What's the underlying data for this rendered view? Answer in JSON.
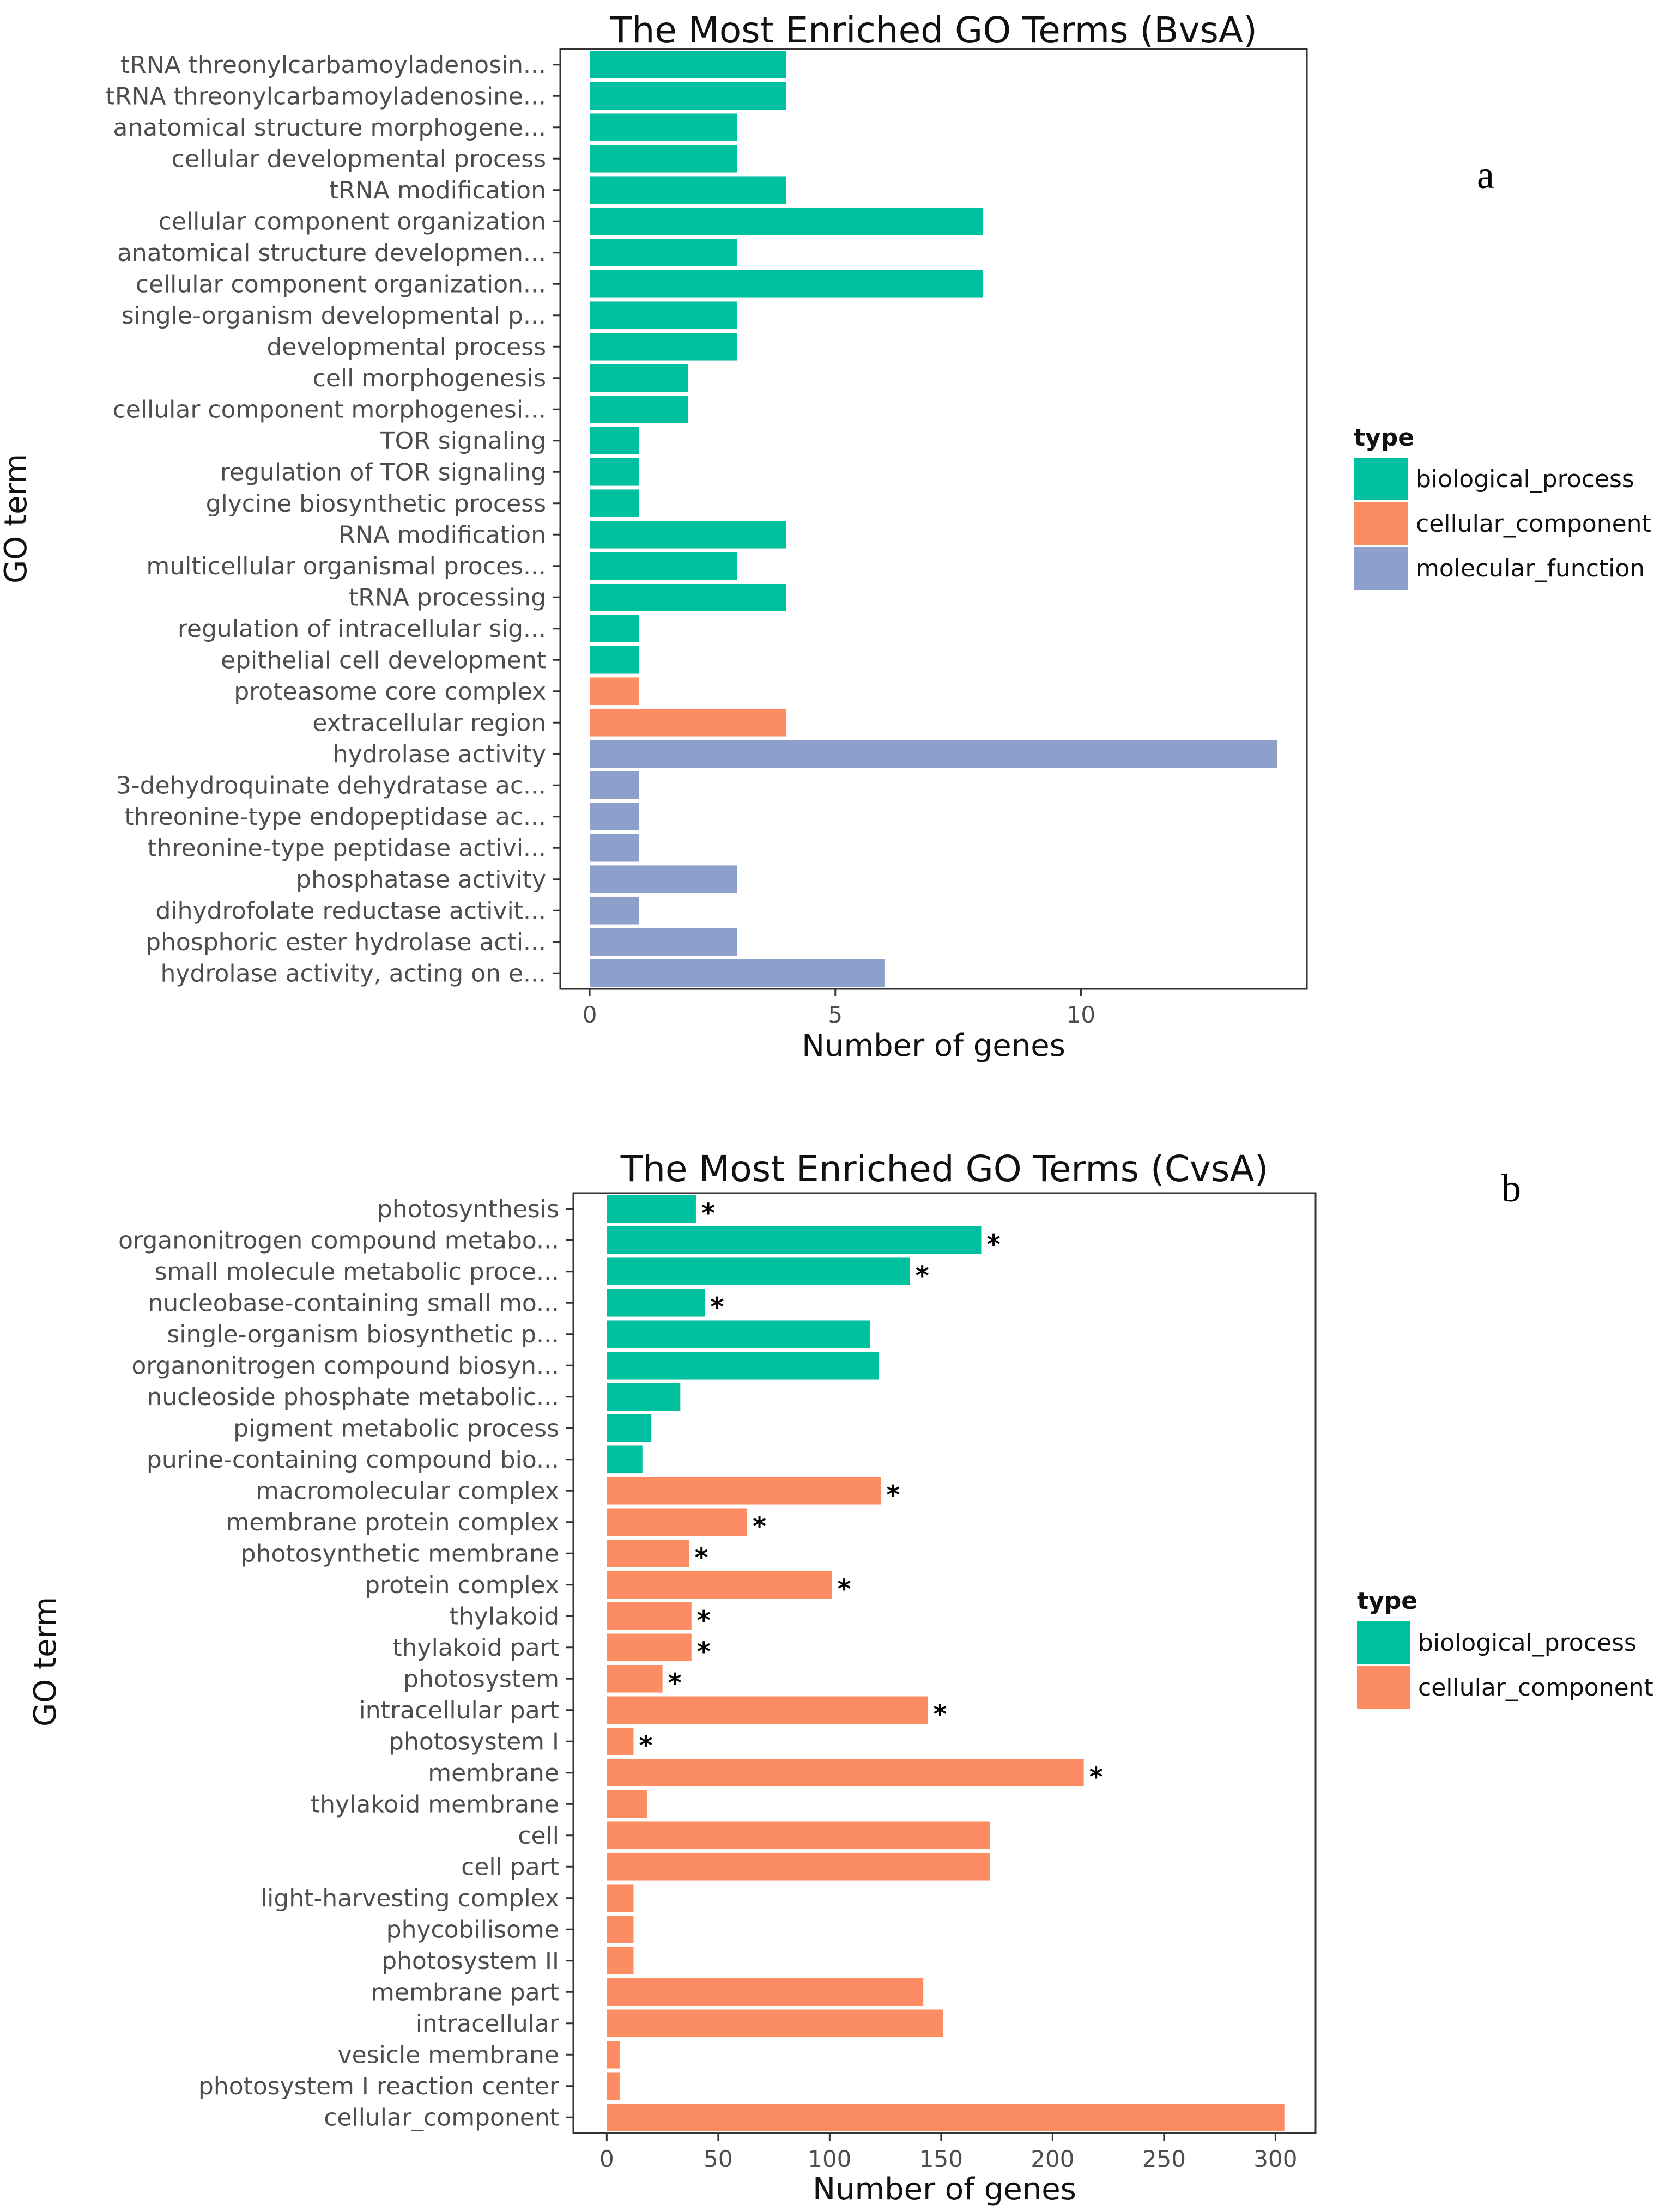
{
  "colors": {
    "biological_process": "#00c19f",
    "cellular_component": "#fc8d62",
    "molecular_function": "#8da0cb"
  },
  "chart_data": [
    {
      "panel": "a",
      "type": "bar",
      "orientation": "horizontal",
      "title": "The Most Enriched GO Terms (BvsA)",
      "xlabel": "Number of genes",
      "ylabel": "GO term",
      "xlim": [
        -0.6,
        14.6
      ],
      "xticks": [
        0,
        5,
        10
      ],
      "legend": {
        "title": "type",
        "placement": "right",
        "entries": [
          "biological_process",
          "cellular_component",
          "molecular_function"
        ]
      },
      "categories": [
        "tRNA threonylcarbamoyladenosin...",
        "tRNA threonylcarbamoyladenosine...",
        "anatomical structure morphogene...",
        "cellular developmental process",
        "tRNA modification",
        "cellular component organization",
        "anatomical structure developmen...",
        "cellular component organization...",
        "single-organism developmental p...",
        "developmental process",
        "cell morphogenesis",
        "cellular component morphogenesi...",
        "TOR signaling",
        "regulation of TOR signaling",
        "glycine biosynthetic process",
        "RNA modification",
        "multicellular organismal proces...",
        "tRNA processing",
        "regulation of intracellular sig...",
        "epithelial cell development",
        "proteasome core complex",
        "extracellular region",
        "hydrolase activity",
        "3-dehydroquinate dehydratase ac...",
        "threonine-type endopeptidase ac...",
        "threonine-type peptidase activi...",
        "phosphatase activity",
        "dihydrofolate reductase activit...",
        "phosphoric ester hydrolase acti...",
        "hydrolase activity, acting on e..."
      ],
      "values": [
        4,
        4,
        3,
        3,
        4,
        8,
        3,
        8,
        3,
        3,
        2,
        2,
        1,
        1,
        1,
        4,
        3,
        4,
        1,
        1,
        1,
        4,
        14,
        1,
        1,
        1,
        3,
        1,
        3,
        6
      ],
      "types": [
        "biological_process",
        "biological_process",
        "biological_process",
        "biological_process",
        "biological_process",
        "biological_process",
        "biological_process",
        "biological_process",
        "biological_process",
        "biological_process",
        "biological_process",
        "biological_process",
        "biological_process",
        "biological_process",
        "biological_process",
        "biological_process",
        "biological_process",
        "biological_process",
        "biological_process",
        "biological_process",
        "cellular_component",
        "cellular_component",
        "molecular_function",
        "molecular_function",
        "molecular_function",
        "molecular_function",
        "molecular_function",
        "molecular_function",
        "molecular_function",
        "molecular_function"
      ],
      "significant": [
        false,
        false,
        false,
        false,
        false,
        false,
        false,
        false,
        false,
        false,
        false,
        false,
        false,
        false,
        false,
        false,
        false,
        false,
        false,
        false,
        false,
        false,
        false,
        false,
        false,
        false,
        false,
        false,
        false,
        false
      ]
    },
    {
      "panel": "b",
      "type": "bar",
      "orientation": "horizontal",
      "title": "The Most Enriched GO Terms (CvsA)",
      "xlabel": "Number of genes",
      "ylabel": "GO term",
      "xlim": [
        -15,
        318
      ],
      "xticks": [
        0,
        50,
        100,
        150,
        200,
        250,
        300
      ],
      "legend": {
        "title": "type",
        "placement": "right",
        "entries": [
          "biological_process",
          "cellular_component"
        ]
      },
      "categories": [
        "photosynthesis",
        "organonitrogen compound metabo...",
        "small molecule metabolic proce...",
        "nucleobase-containing small mo...",
        "single-organism biosynthetic p...",
        "organonitrogen compound biosyn...",
        "nucleoside phosphate metabolic...",
        "pigment metabolic process",
        "purine-containing compound bio...",
        "macromolecular complex",
        "membrane protein complex",
        "photosynthetic membrane",
        "protein complex",
        "thylakoid",
        "thylakoid part",
        "photosystem",
        "intracellular part",
        "photosystem I",
        "membrane",
        "thylakoid membrane",
        "cell",
        "cell part",
        "light-harvesting complex",
        "phycobilisome",
        "photosystem II",
        "membrane part",
        "intracellular",
        "vesicle membrane",
        "photosystem I reaction center",
        "cellular_component"
      ],
      "values": [
        40,
        168,
        136,
        44,
        118,
        122,
        33,
        20,
        16,
        123,
        63,
        37,
        101,
        38,
        38,
        25,
        144,
        12,
        214,
        18,
        172,
        172,
        12,
        12,
        12,
        142,
        151,
        6,
        6,
        304
      ],
      "types": [
        "biological_process",
        "biological_process",
        "biological_process",
        "biological_process",
        "biological_process",
        "biological_process",
        "biological_process",
        "biological_process",
        "biological_process",
        "cellular_component",
        "cellular_component",
        "cellular_component",
        "cellular_component",
        "cellular_component",
        "cellular_component",
        "cellular_component",
        "cellular_component",
        "cellular_component",
        "cellular_component",
        "cellular_component",
        "cellular_component",
        "cellular_component",
        "cellular_component",
        "cellular_component",
        "cellular_component",
        "cellular_component",
        "cellular_component",
        "cellular_component",
        "cellular_component",
        "cellular_component"
      ],
      "significant": [
        true,
        true,
        true,
        true,
        false,
        false,
        false,
        false,
        false,
        true,
        true,
        true,
        true,
        true,
        true,
        true,
        true,
        true,
        true,
        false,
        false,
        false,
        false,
        false,
        false,
        false,
        false,
        false,
        false,
        false
      ],
      "significance_marker": "*"
    }
  ]
}
